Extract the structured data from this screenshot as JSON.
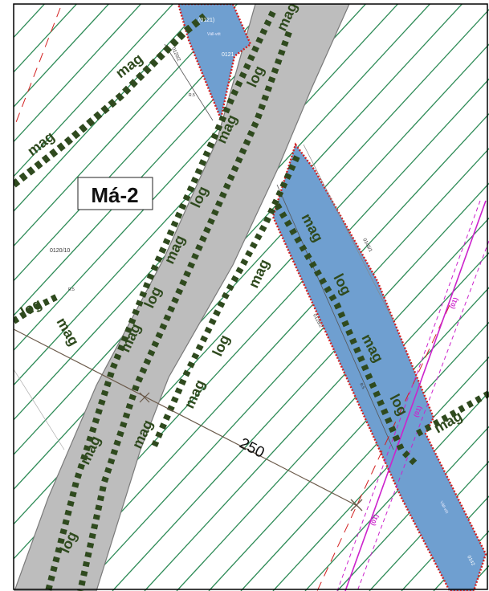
{
  "map": {
    "zone_label": "Má-2",
    "measure_label": "250",
    "road_pattern_text": "mag",
    "road_pattern_text_alt": "log",
    "parcels": [
      "(0121)",
      "0121",
      "0120/2",
      "0120/10",
      "0145/1",
      "0128/2",
      "0142"
    ],
    "parcel_small_text": [
      "Váll-vöt",
      "R.5",
      "R.5",
      "R.5",
      "Váll-vöt"
    ],
    "line_tags": [
      "(01)",
      "(01)",
      "(01)"
    ],
    "colors": {
      "hatch": "#2e8b57",
      "road": "#bdbdbd",
      "road_stroke": "#7a7a7a",
      "parcel_fill": "#6f9fd0",
      "parcel_outline": "#d32020",
      "boundary_dark": "#2f4a1e",
      "powerline": "#cc22cc",
      "measure_line": "#6b5a4a",
      "dashed_red": "#d32020"
    }
  }
}
